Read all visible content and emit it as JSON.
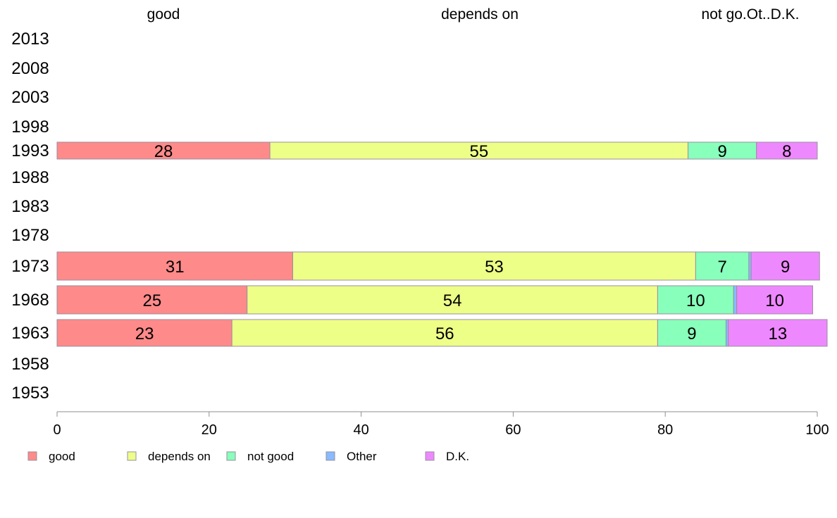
{
  "chart_data": {
    "type": "bar",
    "orientation": "horizontal",
    "stacked": true,
    "categories": [
      "2013",
      "2008",
      "2003",
      "1998",
      "1993",
      "1988",
      "1983",
      "1978",
      "1973",
      "1968",
      "1963",
      "1958",
      "1953"
    ],
    "series": [
      {
        "name": "good",
        "color": "#FF8A8A",
        "values": [
          null,
          null,
          null,
          null,
          28,
          null,
          null,
          null,
          31,
          25,
          23,
          null,
          null
        ]
      },
      {
        "name": "depends on",
        "color": "#EEFF88",
        "values": [
          null,
          null,
          null,
          null,
          55,
          null,
          null,
          null,
          53,
          54,
          56,
          null,
          null
        ]
      },
      {
        "name": "not good",
        "color": "#88FFBB",
        "values": [
          null,
          null,
          null,
          null,
          9,
          null,
          null,
          null,
          7,
          10,
          9,
          null,
          null
        ]
      },
      {
        "name": "Other",
        "color": "#88BBFF",
        "values": [
          null,
          null,
          null,
          null,
          0,
          null,
          null,
          null,
          0.3,
          0.4,
          0.3,
          null,
          null
        ]
      },
      {
        "name": "D.K.",
        "color": "#EE88FF",
        "values": [
          null,
          null,
          null,
          null,
          8,
          null,
          null,
          null,
          9,
          10,
          13,
          null,
          null
        ]
      }
    ],
    "segment_labels": [
      [
        null,
        null,
        null,
        null,
        "28",
        null,
        null,
        null,
        "31",
        "25",
        "23",
        null,
        null
      ],
      [
        null,
        null,
        null,
        null,
        "55",
        null,
        null,
        null,
        "53",
        "54",
        "56",
        null,
        null
      ],
      [
        null,
        null,
        null,
        null,
        "9",
        null,
        null,
        null,
        "7",
        "10",
        "9",
        null,
        null
      ],
      [
        null,
        null,
        null,
        null,
        null,
        null,
        null,
        null,
        null,
        null,
        null,
        null,
        null
      ],
      [
        null,
        null,
        null,
        null,
        "8",
        null,
        null,
        null,
        "9",
        "10",
        "13",
        null,
        null
      ]
    ],
    "top_labels": [
      "good",
      "depends on",
      "not go.Ot..D.K."
    ],
    "xlim": [
      0,
      100
    ],
    "xticks": [
      "0",
      "20",
      "40",
      "60",
      "80",
      "100"
    ],
    "legend_position": "bottom",
    "grid": false
  }
}
